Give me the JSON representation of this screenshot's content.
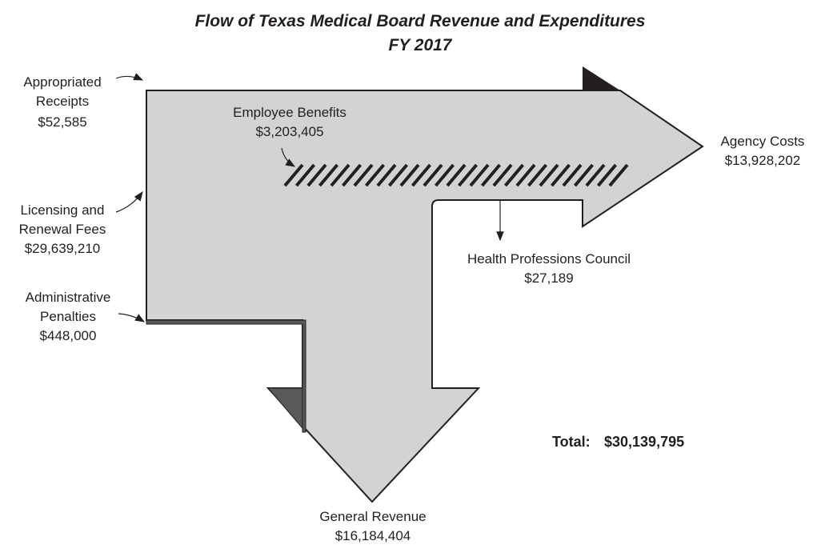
{
  "title": [
    "Flow of Texas Medical Board Revenue and Expenditures",
    "FY 2017"
  ],
  "inflows": [
    {
      "label": [
        "Appropriated",
        "Receipts"
      ],
      "amount": "$52,585"
    },
    {
      "label": [
        "Licensing and",
        "Renewal Fees"
      ],
      "amount": "$29,639,210"
    },
    {
      "label": [
        "Administrative",
        "Penalties"
      ],
      "amount": "$448,000"
    }
  ],
  "outflows": [
    {
      "label": [
        "Employee Benefits"
      ],
      "amount": "$3,203,405"
    },
    {
      "label": [
        "Agency Costs"
      ],
      "amount": "$13,928,202"
    },
    {
      "label": [
        "Health Professions Council"
      ],
      "amount": "$27,189"
    },
    {
      "label": [
        "General Revenue"
      ],
      "amount": "$16,184,404"
    }
  ],
  "total": {
    "label": "Total:",
    "amount": "$30,139,795"
  }
}
